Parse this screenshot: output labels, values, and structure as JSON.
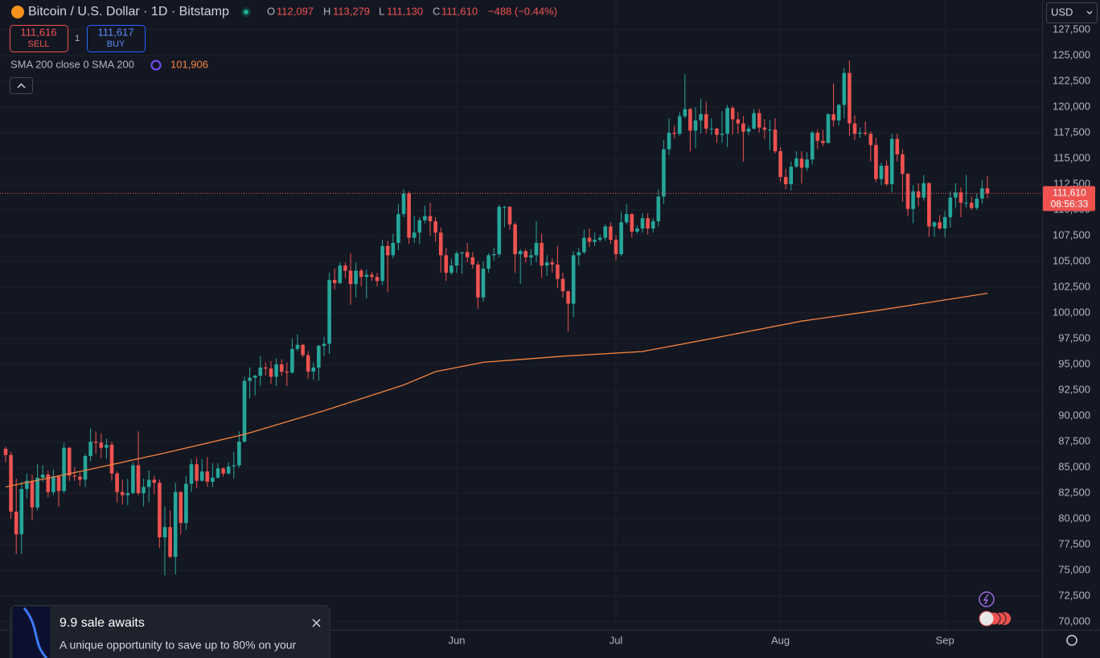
{
  "header": {
    "symbol": "Bitcoin / U.S. Dollar · 1D · Bitstamp",
    "o_label": "O",
    "o_value": "112,097",
    "h_label": "H",
    "h_value": "113,279",
    "l_label": "L",
    "l_value": "111,130",
    "c_label": "C",
    "c_value": "111,610",
    "change": "−488 (−0.44%)",
    "sell_price": "111,616",
    "sell_label": "SELL",
    "spread": "1",
    "buy_price": "111,617",
    "buy_label": "BUY",
    "indicator_label": "SMA 200 close 0 SMA 200",
    "indicator_value": "101,906",
    "currency": "USD"
  },
  "popup": {
    "title": "9.9 sale awaits",
    "text": "A unique opportunity to save up to 80% on your"
  },
  "chart_data": {
    "type": "candlestick",
    "categories": [
      null,
      null,
      null,
      null,
      null,
      null,
      null,
      null,
      null,
      null,
      null,
      null,
      null,
      null,
      null,
      null,
      null,
      null,
      null,
      null,
      null,
      null,
      null,
      null,
      null,
      null,
      null,
      null,
      null,
      null,
      null,
      null,
      null,
      null,
      null,
      null,
      null,
      null,
      null,
      null,
      null,
      null,
      null,
      null,
      null,
      null,
      null,
      null,
      null,
      null,
      null,
      null,
      null,
      null,
      null,
      null,
      null,
      null,
      null,
      null,
      null,
      null,
      null,
      null,
      null,
      null,
      null,
      null,
      null,
      null,
      null,
      null,
      null,
      null,
      null,
      null,
      null,
      null,
      null,
      null,
      null,
      null,
      null,
      null,
      null,
      "Jun",
      null,
      null,
      null,
      null,
      null,
      null,
      null,
      null,
      null,
      null,
      null,
      null,
      null,
      null,
      null,
      null,
      null,
      null,
      null,
      null,
      null,
      null,
      null,
      null,
      null,
      null,
      null,
      null,
      null,
      "Jul",
      null,
      null,
      null,
      null,
      null,
      null,
      null,
      null,
      null,
      null,
      null,
      null,
      null,
      null,
      null,
      null,
      null,
      null,
      null,
      null,
      null,
      null,
      null,
      null,
      null,
      null,
      null,
      null,
      null,
      null,
      "Aug",
      null,
      null,
      null,
      null,
      null,
      null,
      null,
      null,
      null,
      null,
      null,
      null,
      null,
      null,
      null,
      null,
      null,
      null,
      null,
      null,
      null,
      null,
      null,
      null,
      null,
      null,
      null,
      null,
      null,
      null,
      "Sep",
      null,
      null,
      null,
      null,
      null,
      null,
      null,
      null
    ],
    "open": [
      86800,
      86200,
      80700,
      78500,
      82900,
      83700,
      81100,
      84000,
      84300,
      82600,
      84100,
      82700,
      86900,
      84200,
      84100,
      83800,
      86100,
      87500,
      87400,
      86900,
      87200,
      84400,
      82600,
      82300,
      82500,
      85200,
      82500,
      83100,
      83800,
      83500,
      78200,
      79200,
      76300,
      82600,
      79600,
      83400,
      85300,
      83700,
      84600,
      83600,
      84000,
      84900,
      84400,
      85100,
      85200,
      87500,
      93400,
      93700,
      93900,
      94700,
      94600,
      93800,
      95000,
      94300,
      94200,
      96500,
      96900,
      95900,
      94300,
      94700,
      96800,
      97000,
      103200,
      102900,
      104600,
      104100,
      102800,
      104100,
      103500,
      103700,
      103500,
      103100,
      106500,
      105600,
      106800,
      109600,
      111600,
      107300,
      107800,
      109000,
      109400,
      108900,
      107800,
      105600,
      103900,
      104600,
      105800,
      105900,
      105400,
      104700,
      101500,
      104300,
      105600,
      105700,
      110300,
      110300,
      108600,
      105700,
      106000,
      105400,
      105600,
      106800,
      104600,
      104900,
      104700,
      103300,
      102100,
      100900,
      105600,
      105900,
      107300,
      106900,
      107100,
      107300,
      108400,
      107100,
      105700,
      108800,
      109600,
      107900,
      108200,
      109200,
      108200,
      108900,
      111300,
      115900,
      117500,
      117400,
      119100,
      119800,
      117700,
      118700,
      119300,
      117900,
      117900,
      117300,
      117400,
      119900,
      118800,
      118400,
      117600,
      117900,
      119400,
      118000,
      117800,
      117800,
      115700,
      113200,
      112500,
      114200,
      115000,
      114100,
      114900,
      117500,
      116700,
      116500,
      119300,
      118700,
      120200,
      123300,
      118400,
      117400,
      117500,
      117400,
      116300,
      113000,
      114300,
      112500,
      116900,
      115400,
      113500,
      110100,
      111800,
      111200,
      112600,
      108400,
      108800,
      108200,
      109300,
      111200,
      111700,
      110700,
      110700,
      110200,
      111100,
      112097
    ],
    "high": [
      87000,
      86500,
      83900,
      83600,
      84400,
      84300,
      85300,
      85200,
      84700,
      84800,
      84200,
      87400,
      87000,
      85000,
      84500,
      86300,
      88800,
      88500,
      88300,
      87800,
      87500,
      84600,
      83800,
      83900,
      85500,
      88500,
      83900,
      84700,
      84200,
      83800,
      81200,
      80800,
      83500,
      82700,
      84200,
      85800,
      85900,
      85800,
      86000,
      85400,
      85400,
      85000,
      85500,
      86500,
      88500,
      93800,
      94700,
      94000,
      95800,
      95200,
      95300,
      95600,
      95500,
      95200,
      97500,
      97900,
      97000,
      96300,
      95200,
      96900,
      97700,
      103900,
      104300,
      104900,
      104900,
      105800,
      104900,
      104300,
      104200,
      104000,
      103900,
      107100,
      107000,
      107700,
      110600,
      112000,
      111800,
      109400,
      109300,
      110400,
      110700,
      109300,
      108300,
      106300,
      105300,
      106000,
      105900,
      106800,
      105900,
      105000,
      105000,
      105800,
      106300,
      110500,
      110400,
      110400,
      108800,
      106200,
      106200,
      106200,
      108900,
      107700,
      105600,
      105300,
      106500,
      103900,
      102200,
      106000,
      106300,
      108100,
      108200,
      107800,
      107600,
      108600,
      108800,
      107600,
      109800,
      110600,
      109700,
      108500,
      109700,
      109700,
      109200,
      112000,
      116800,
      118900,
      118200,
      119500,
      123200,
      119900,
      120000,
      120800,
      120500,
      118900,
      118000,
      119600,
      120200,
      120100,
      119500,
      119100,
      118200,
      119800,
      119800,
      118800,
      118700,
      118900,
      116100,
      114000,
      114700,
      115700,
      115700,
      115600,
      117700,
      117800,
      117800,
      119400,
      122300,
      120300,
      123800,
      124500,
      119200,
      118000,
      118600,
      117600,
      117000,
      114600,
      114800,
      117400,
      117400,
      115900,
      113600,
      112400,
      112600,
      113400,
      112700,
      108900,
      109500,
      109900,
      111800,
      112600,
      112200,
      113400,
      111300,
      111600,
      112900,
      113279
    ],
    "low": [
      85500,
      80000,
      76600,
      76600,
      82000,
      79900,
      80800,
      83600,
      82100,
      82300,
      81200,
      82500,
      83700,
      83700,
      83200,
      83100,
      85600,
      86300,
      85900,
      85800,
      83700,
      81600,
      81400,
      81300,
      82400,
      82300,
      81200,
      81600,
      82400,
      77200,
      74500,
      76200,
      74600,
      78500,
      78900,
      82600,
      83000,
      83600,
      83100,
      83100,
      83900,
      84100,
      84300,
      83900,
      85000,
      87400,
      91700,
      92000,
      92900,
      93900,
      93100,
      92900,
      93900,
      92900,
      94100,
      96300,
      95700,
      93600,
      93500,
      93400,
      95800,
      96000,
      102300,
      102800,
      103400,
      100800,
      101500,
      102600,
      101400,
      103100,
      102600,
      102700,
      102000,
      105300,
      106100,
      109300,
      106700,
      106800,
      106700,
      108700,
      107500,
      106900,
      103900,
      103100,
      103700,
      103900,
      103800,
      104900,
      104300,
      100400,
      101100,
      103900,
      105100,
      105400,
      108300,
      108100,
      103900,
      102800,
      104900,
      104600,
      104900,
      103400,
      103600,
      103900,
      102400,
      101500,
      98200,
      99600,
      104600,
      105700,
      106400,
      106500,
      106900,
      107000,
      106700,
      105100,
      105500,
      108600,
      107300,
      107700,
      107800,
      107600,
      107800,
      108400,
      110600,
      115300,
      116900,
      117200,
      118900,
      115700,
      116000,
      117400,
      117400,
      117300,
      116500,
      116500,
      116100,
      117300,
      117400,
      114700,
      117300,
      117800,
      117500,
      116900,
      115800,
      115500,
      112700,
      112000,
      111900,
      114100,
      112600,
      113800,
      114400,
      115900,
      116200,
      116500,
      118100,
      118200,
      118900,
      117200,
      116800,
      117000,
      117200,
      114700,
      112700,
      112400,
      112300,
      111700,
      114700,
      110800,
      109400,
      108700,
      110400,
      110900,
      107400,
      107400,
      108100,
      107300,
      108300,
      110200,
      109300,
      110200,
      110000,
      110000,
      110600,
      111130
    ],
    "close": [
      86200,
      80700,
      78500,
      82900,
      83700,
      81100,
      84000,
      84300,
      82600,
      84100,
      82700,
      86900,
      84200,
      84100,
      83800,
      86100,
      87500,
      87400,
      86900,
      87200,
      84400,
      82600,
      82300,
      82500,
      85200,
      82500,
      83100,
      83800,
      83500,
      78200,
      79200,
      76300,
      82600,
      79600,
      83400,
      85300,
      83700,
      84600,
      83600,
      84000,
      84900,
      84400,
      85100,
      85200,
      87500,
      93400,
      93700,
      93900,
      94700,
      94600,
      93800,
      95000,
      94300,
      94200,
      96500,
      96900,
      95900,
      94300,
      94700,
      96800,
      97000,
      103200,
      102900,
      104600,
      104100,
      102800,
      104100,
      103500,
      103700,
      103500,
      103100,
      106500,
      105600,
      106800,
      109600,
      111600,
      107300,
      107800,
      109000,
      109400,
      108900,
      107800,
      105600,
      103900,
      104600,
      105800,
      105900,
      105400,
      104700,
      101500,
      104300,
      105600,
      105700,
      110300,
      110300,
      108600,
      105700,
      106000,
      105400,
      105600,
      106800,
      104600,
      104900,
      104700,
      103300,
      102100,
      100900,
      105600,
      105900,
      107300,
      106900,
      107100,
      107300,
      108400,
      107100,
      105700,
      108800,
      109600,
      107900,
      108200,
      109200,
      108200,
      108900,
      111300,
      115900,
      117500,
      117400,
      119100,
      119800,
      117700,
      118700,
      119300,
      117900,
      117900,
      117300,
      117400,
      119900,
      118800,
      118400,
      117600,
      117900,
      119400,
      118000,
      117800,
      117800,
      115700,
      113200,
      112500,
      114200,
      115000,
      114100,
      114900,
      117500,
      116700,
      116500,
      119300,
      118700,
      120200,
      123300,
      118400,
      117400,
      117500,
      117400,
      116300,
      113000,
      114300,
      112500,
      116900,
      115400,
      113500,
      110100,
      111800,
      111200,
      112600,
      108400,
      108800,
      108200,
      109300,
      111200,
      111700,
      110700,
      110700,
      110200,
      111100,
      112097,
      111610
    ],
    "up_color": "#26a69a",
    "down_color": "#ef5350",
    "overlay": {
      "type": "line",
      "color": "#f7843f",
      "x": [
        0,
        15,
        30,
        45,
        60,
        75,
        81,
        90,
        105,
        120,
        135,
        150,
        165,
        185
      ],
      "values": [
        83100,
        84700,
        86400,
        88200,
        90500,
        93000,
        94300,
        95200,
        95800,
        96250,
        97700,
        99200,
        100300,
        101906
      ]
    },
    "last_price": {
      "value": 111610,
      "label": "111,610",
      "countdown": "08:56:33"
    },
    "ylim": [
      69220,
      130390
    ],
    "yticks": [
      {
        "value": 127500,
        "label": "127,500"
      },
      {
        "value": 125000,
        "label": "125,000"
      },
      {
        "value": 122500,
        "label": "122,500"
      },
      {
        "value": 120000,
        "label": "120,000"
      },
      {
        "value": 117500,
        "label": "117,500"
      },
      {
        "value": 115000,
        "label": "115,000"
      },
      {
        "value": 112500,
        "label": "112,500"
      },
      {
        "value": 110000,
        "label": "110,000"
      },
      {
        "value": 107500,
        "label": "107,500"
      },
      {
        "value": 105000,
        "label": "105,000"
      },
      {
        "value": 102500,
        "label": "102,500"
      },
      {
        "value": 100000,
        "label": "100,000"
      },
      {
        "value": 97500,
        "label": "97,500"
      },
      {
        "value": 95000,
        "label": "95,000"
      },
      {
        "value": 92500,
        "label": "92,500"
      },
      {
        "value": 90000,
        "label": "90,000"
      },
      {
        "value": 87500,
        "label": "87,500"
      },
      {
        "value": 85000,
        "label": "85,000"
      },
      {
        "value": 82500,
        "label": "82,500"
      },
      {
        "value": 80000,
        "label": "80,000"
      },
      {
        "value": 77500,
        "label": "77,500"
      },
      {
        "value": 75000,
        "label": "75,000"
      },
      {
        "value": 72500,
        "label": "72,500"
      },
      {
        "value": 70000,
        "label": "70,000"
      }
    ],
    "grid": true
  }
}
